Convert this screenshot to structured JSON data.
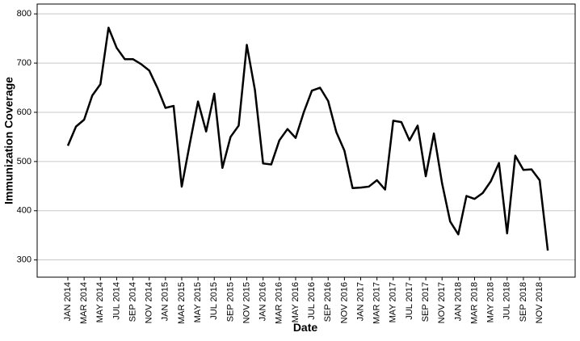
{
  "chart_data": {
    "type": "line",
    "x_label": "Date",
    "y_label": "Immunization Coverage",
    "categories": [
      "JAN 2014",
      null,
      "MAR 2014",
      null,
      "MAY 2014",
      null,
      "JUL 2014",
      null,
      "SEP 2014",
      null,
      "NOV 2014",
      null,
      "JAN 2015",
      null,
      "MAR 2015",
      null,
      "MAY 2015",
      null,
      "JUL 2015",
      null,
      "SEP 2015",
      null,
      "NOV 2015",
      null,
      "JAN 2016",
      null,
      "MAR 2016",
      null,
      "MAY 2016",
      null,
      "JUL 2016",
      null,
      "SEP 2016",
      null,
      "NOV 2016",
      null,
      "JAN 2017",
      null,
      "MAR 2017",
      null,
      "MAY 2017",
      null,
      "JUL 2017",
      null,
      "SEP 2017",
      null,
      "NOV 2017",
      null,
      "JAN 2018",
      null,
      "MAR 2018",
      null,
      "MAY 2018",
      null,
      "JUL 2018",
      null,
      "SEP 2018",
      null,
      "NOV 2018",
      null
    ],
    "values": [
      532,
      571,
      585,
      634,
      657,
      772,
      731,
      708,
      708,
      698,
      685,
      650,
      609,
      613,
      449,
      537,
      622,
      561,
      638,
      487,
      550,
      573,
      737,
      645,
      496,
      494,
      543,
      566,
      548,
      600,
      644,
      650,
      623,
      560,
      522,
      446,
      447,
      449,
      462,
      443,
      583,
      580,
      543,
      573,
      470,
      557,
      456,
      378,
      352,
      430,
      424,
      436,
      460,
      497,
      354,
      512,
      483,
      484,
      462,
      319
    ],
    "color": "#000000",
    "ylim": [
      265,
      820
    ],
    "yticks": [
      300,
      400,
      500,
      600,
      700,
      800
    ],
    "grid": true
  }
}
